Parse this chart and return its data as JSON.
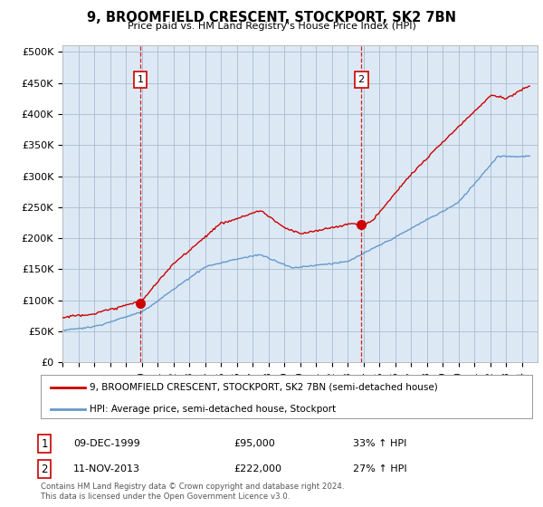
{
  "title": "9, BROOMFIELD CRESCENT, STOCKPORT, SK2 7BN",
  "subtitle": "Price paid vs. HM Land Registry's House Price Index (HPI)",
  "ylabel_ticks": [
    "£0",
    "£50K",
    "£100K",
    "£150K",
    "£200K",
    "£250K",
    "£300K",
    "£350K",
    "£400K",
    "£450K",
    "£500K"
  ],
  "ytick_values": [
    0,
    50000,
    100000,
    150000,
    200000,
    250000,
    300000,
    350000,
    400000,
    450000,
    500000
  ],
  "ylim": [
    0,
    510000
  ],
  "sale1_x": 1999.92,
  "sale1_price": 95000,
  "sale2_x": 2013.86,
  "sale2_price": 222000,
  "hpi_color": "#6699cc",
  "price_color": "#cc0000",
  "chart_bg_color": "#dce9f5",
  "background_color": "#ffffff",
  "grid_color": "#aabbcc",
  "legend_entry1": "9, BROOMFIELD CRESCENT, STOCKPORT, SK2 7BN (semi-detached house)",
  "legend_entry2": "HPI: Average price, semi-detached house, Stockport",
  "annotation1_date": "09-DEC-1999",
  "annotation1_price": "£95,000",
  "annotation1_hpi": "33% ↑ HPI",
  "annotation2_date": "11-NOV-2013",
  "annotation2_price": "£222,000",
  "annotation2_hpi": "27% ↑ HPI",
  "footnote": "Contains HM Land Registry data © Crown copyright and database right 2024.\nThis data is licensed under the Open Government Licence v3.0.",
  "xlim_start": 1995.0,
  "xlim_end": 2025.0
}
